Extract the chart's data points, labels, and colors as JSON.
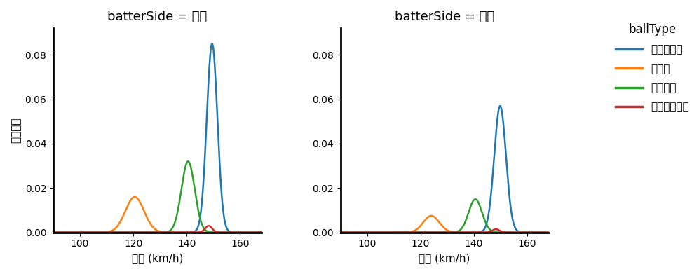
{
  "title_left": "batterSide = 左打",
  "title_right": "batterSide = 右打",
  "xlabel": "球速 (km/h)",
  "ylabel": "確率密度",
  "legend_title": "ballType",
  "ball_types": [
    "ストレート",
    "カーブ",
    "フォーク",
    "カットボール"
  ],
  "colors": [
    "#1f77b4",
    "#ff7f0e",
    "#2ca02c",
    "#d62728"
  ],
  "xlim": [
    90,
    168
  ],
  "ylim": [
    0,
    0.092
  ],
  "xticks": [
    100,
    120,
    140,
    160
  ],
  "yticks": [
    0.0,
    0.02,
    0.04,
    0.06,
    0.08
  ],
  "left_params": [
    {
      "mean": 149.5,
      "std": 2.0,
      "peak": 0.085,
      "color_idx": 0
    },
    {
      "mean": 120.5,
      "std": 3.5,
      "peak": 0.016,
      "color_idx": 1
    },
    {
      "mean": 140.5,
      "std": 2.5,
      "peak": 0.032,
      "color_idx": 2
    },
    {
      "mean": 148.2,
      "std": 1.3,
      "peak": 0.003,
      "color_idx": 3
    }
  ],
  "right_params": [
    {
      "mean": 149.8,
      "std": 2.2,
      "peak": 0.057,
      "color_idx": 0
    },
    {
      "mean": 124.0,
      "std": 3.0,
      "peak": 0.0075,
      "color_idx": 1
    },
    {
      "mean": 140.5,
      "std": 2.5,
      "peak": 0.015,
      "color_idx": 2
    },
    {
      "mean": 148.2,
      "std": 1.3,
      "peak": 0.0015,
      "color_idx": 3
    }
  ],
  "background_color": "#ffffff",
  "spine_color": "#000000",
  "linewidth": 1.8
}
